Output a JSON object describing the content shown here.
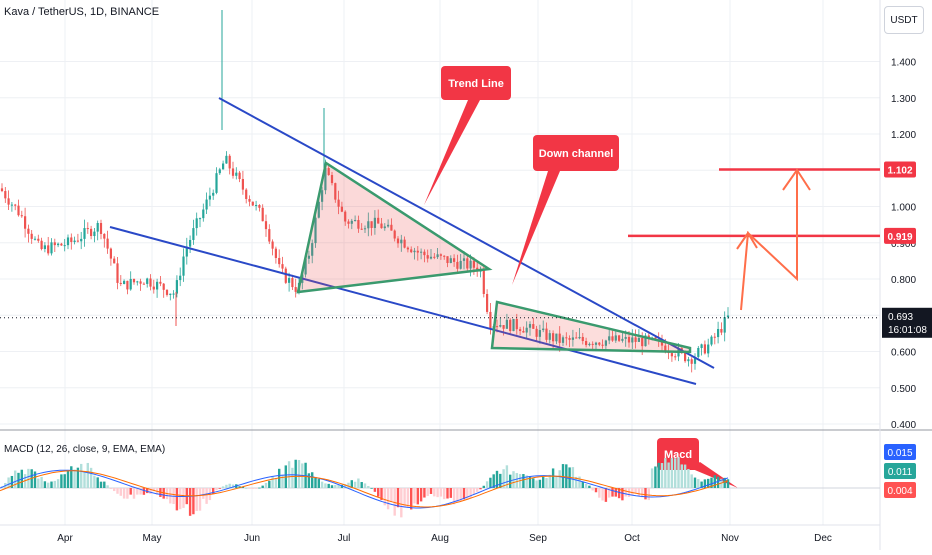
{
  "header": {
    "title": "Kava / TetherUS, 1D, BINANCE"
  },
  "currency_button": {
    "label": "USDT"
  },
  "chart_data": {
    "type": "candlestick",
    "symbol": "Kava / TetherUS",
    "interval": "1D",
    "exchange": "BINANCE",
    "x_tick_labels": [
      "Apr",
      "May",
      "Jun",
      "Jul",
      "Aug",
      "Sep",
      "Oct",
      "Nov",
      "Dec"
    ],
    "y_tick_labels": [
      "1.400",
      "1.300",
      "1.200",
      "1.100",
      "1.000",
      "0.900",
      "0.800",
      "0.700",
      "0.600",
      "0.500",
      "0.400"
    ],
    "ylim": [
      0.4,
      1.5
    ],
    "last_price": {
      "label": "0.693",
      "value": 0.693,
      "countdown": "16:01:08"
    },
    "price_levels": [
      {
        "label": "1.102",
        "value": 1.102,
        "color": "#f23645"
      },
      {
        "label": "0.919",
        "value": 0.919,
        "color": "#f23645"
      }
    ],
    "annotations": [
      {
        "text": "Trend Line",
        "color": "#f23645"
      },
      {
        "text": "Down channel",
        "color": "#f23645"
      },
      {
        "text": "Macd",
        "color": "#f23645"
      }
    ],
    "macd": {
      "title": "MACD (12, 26, close, 9, EMA, EMA)",
      "values": [
        {
          "label": "0.015",
          "value": 0.015,
          "color": "#2962ff"
        },
        {
          "label": "0.011",
          "value": 0.011,
          "color": "#26a69a"
        },
        {
          "label": "0.004",
          "value": 0.004,
          "color": "#ff5252"
        }
      ]
    },
    "colors": {
      "up": "#26a69a",
      "down": "#ef5350",
      "trend": "#2a49c7",
      "pattern": "#3a9a6e",
      "target": "#f23645",
      "arrow": "#ff6e4a"
    }
  }
}
